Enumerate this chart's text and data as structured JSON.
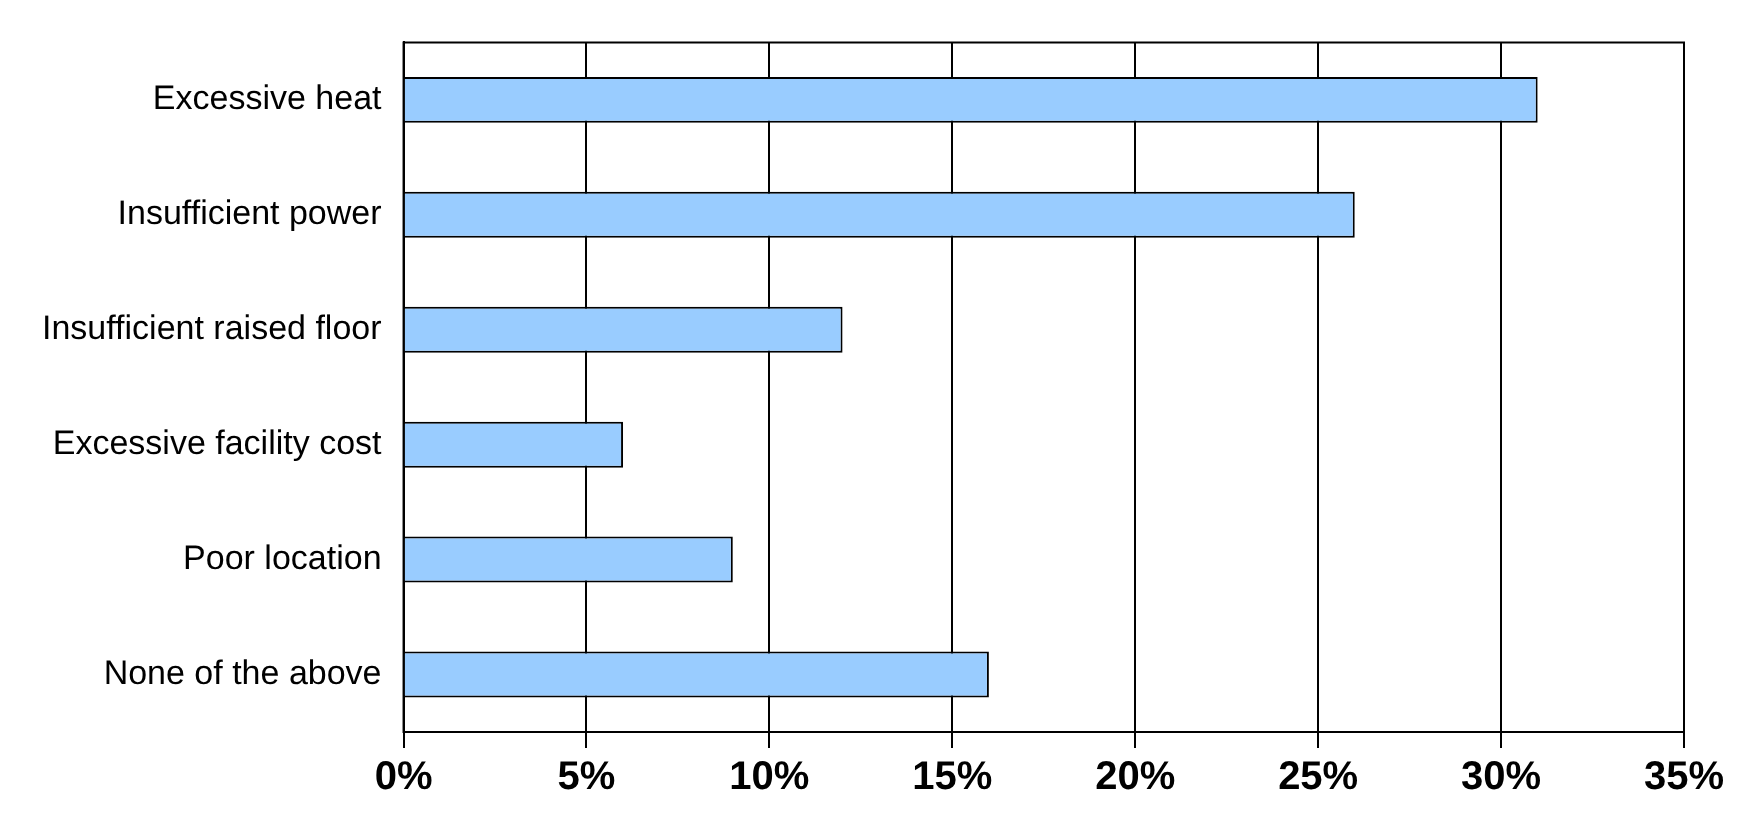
{
  "chart_data": {
    "type": "bar",
    "orientation": "horizontal",
    "categories": [
      "Excessive heat",
      "Insufficient power",
      "Insufficient raised floor",
      "Excessive facility cost",
      "Poor location",
      "None of the above"
    ],
    "values": [
      31,
      26,
      12,
      6,
      9,
      16
    ],
    "color": "#99ccff",
    "xlim": [
      0,
      35
    ],
    "xticks": [
      {
        "value": 0,
        "label": "0%"
      },
      {
        "value": 5,
        "label": "5%"
      },
      {
        "value": 10,
        "label": "10%"
      },
      {
        "value": 15,
        "label": "15%"
      },
      {
        "value": 20,
        "label": "20%"
      },
      {
        "value": 25,
        "label": "25%"
      },
      {
        "value": 30,
        "label": "30%"
      },
      {
        "value": 35,
        "label": "35%"
      }
    ],
    "grid": "x",
    "legend": false
  }
}
